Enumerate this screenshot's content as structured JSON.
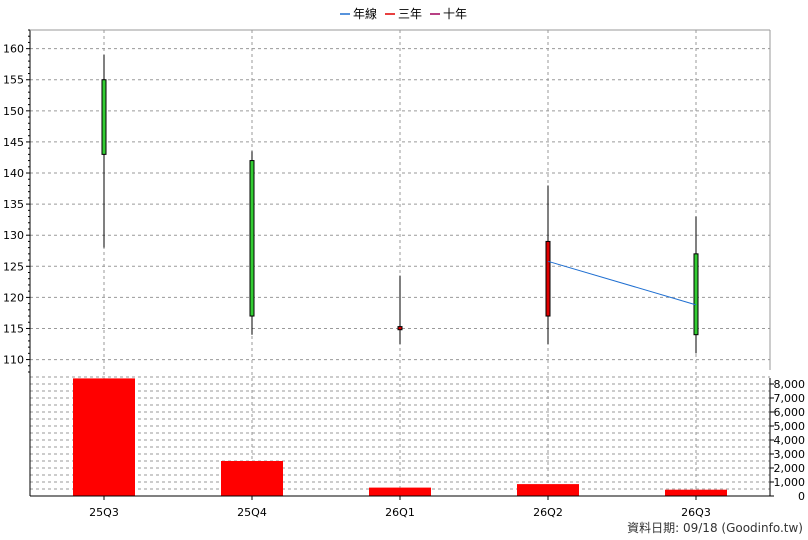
{
  "chart_data": {
    "type": "candlestick+bar",
    "categories": [
      "25Q3",
      "25Q4",
      "26Q1",
      "26Q2",
      "26Q3"
    ],
    "legend": [
      {
        "label": "年線",
        "color": "#1f6fd1"
      },
      {
        "label": "三年",
        "color": "#e00000"
      },
      {
        "label": "十年",
        "color": "#a0005a"
      }
    ],
    "price_axis": {
      "ticks": [
        110,
        115,
        120,
        125,
        130,
        135,
        140,
        145,
        150,
        155,
        160
      ],
      "ylim": [
        108,
        163
      ]
    },
    "volume_axis": {
      "ticks": [
        0,
        1000,
        2000,
        3000,
        4000,
        5000,
        6000,
        7000,
        8000
      ],
      "tick_labels": [
        "0",
        "1,000",
        "2,000",
        "3,000",
        "4,000",
        "5,000",
        "6,000",
        "7,000",
        "8,000"
      ],
      "ylim": [
        0,
        9000
      ]
    },
    "candles": [
      {
        "category": "25Q3",
        "open": 155,
        "high": 159,
        "low": 128,
        "close": 143,
        "color": "#33cc33"
      },
      {
        "category": "25Q4",
        "open": 142,
        "high": 143.5,
        "low": 114,
        "close": 117,
        "color": "#33cc33"
      },
      {
        "category": "26Q1",
        "open": 114.8,
        "high": 123.5,
        "low": 112.5,
        "close": 115.3,
        "color": "#e00000"
      },
      {
        "category": "26Q2",
        "open": 117,
        "high": 138,
        "low": 112.5,
        "close": 129,
        "color": "#e00000"
      },
      {
        "category": "26Q3",
        "open": 127,
        "high": 133,
        "low": 111,
        "close": 114,
        "color": "#33cc33"
      }
    ],
    "annual_line": {
      "name": "年線",
      "points": [
        {
          "category": "26Q2",
          "value": 125.8
        },
        {
          "category": "26Q3",
          "value": 118.8
        }
      ]
    },
    "volumes": [
      8400,
      2500,
      600,
      850,
      450
    ],
    "footer": "資料日期: 09/18  (Goodinfo.tw)",
    "grid": true,
    "colors": {
      "volume_bar": "#ff0000",
      "grid": "#9a9a9a",
      "axis": "#000000",
      "annual_line": "#1f6fd1"
    }
  }
}
